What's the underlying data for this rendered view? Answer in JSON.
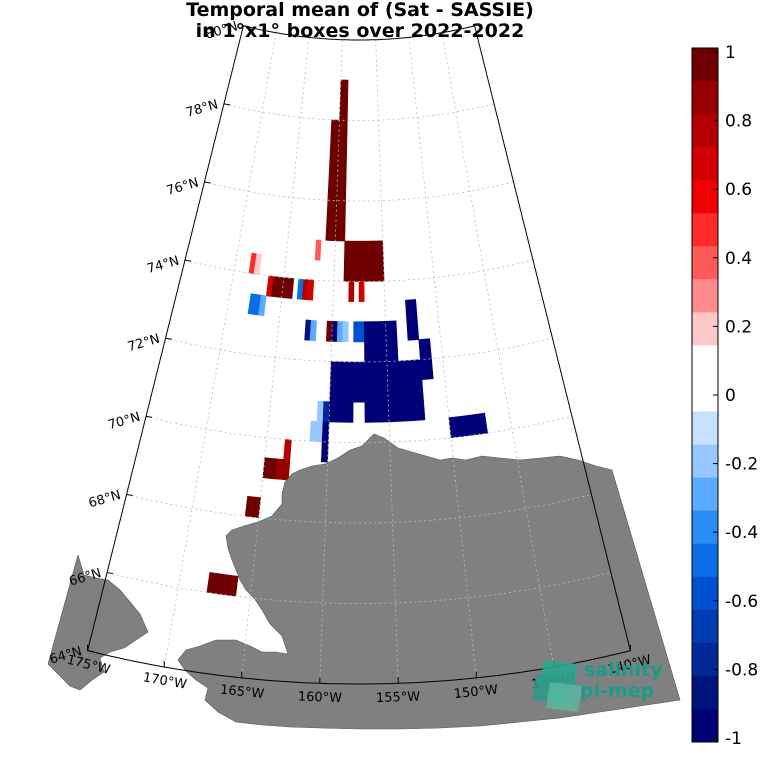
{
  "title_line1": "Temporal mean of (Sat - SASSIE)",
  "title_line2": "in 1°x1° boxes over 2022-2022",
  "chart_data": {
    "type": "heatmap",
    "projection": "polar",
    "lat_range": [
      64,
      80
    ],
    "lon_range": [
      -175,
      -140
    ],
    "lat_ticks": [
      "64°N",
      "66°N",
      "68°N",
      "70°N",
      "72°N",
      "74°N",
      "76°N",
      "78°N",
      "80°N"
    ],
    "lon_ticks": [
      "175°W",
      "170°W",
      "165°W",
      "160°W",
      "155°W",
      "150°W",
      "145°W",
      "140°W"
    ],
    "land_color": "#808080",
    "grid": true,
    "colorbar": {
      "range": [
        -1,
        1
      ],
      "tick_labels": [
        "1",
        "0.8",
        "0.6",
        "0.4",
        "0.2",
        "0",
        "-0.2",
        "-0.4",
        "-0.6",
        "-0.8",
        "-1"
      ],
      "colors_top_to_bottom": [
        "#6e0000",
        "#960000",
        "#b40000",
        "#d20000",
        "#f00000",
        "#ff2a2a",
        "#ff5a5a",
        "#ff8c8c",
        "#ffc8c8",
        "#ffffff",
        "#ffffff",
        "#c8e0ff",
        "#96c8ff",
        "#5aaaff",
        "#2a8cf5",
        "#0a6ee6",
        "#0050d2",
        "#003cb4",
        "#002896",
        "#00147d",
        "#000078"
      ]
    },
    "cells": [
      {
        "lon": -159.5,
        "lat": 78.5,
        "value": 0.95
      },
      {
        "lon": -160.5,
        "lat": 77.5,
        "value": 0.95
      },
      {
        "lon": -159.5,
        "lat": 77.5,
        "value": 0.95
      },
      {
        "lon": -160.5,
        "lat": 76.5,
        "value": 0.95
      },
      {
        "lon": -159.5,
        "lat": 76.5,
        "value": 0.95
      },
      {
        "lon": -160.5,
        "lat": 75.5,
        "value": 0.95
      },
      {
        "lon": -159.5,
        "lat": 75.5,
        "value": 0.95
      },
      {
        "lon": -161.75,
        "lat": 74.75,
        "value": 0.35
      },
      {
        "lon": -158.5,
        "lat": 74.5,
        "value": 0.95
      },
      {
        "lon": -157.5,
        "lat": 74.5,
        "value": 0.95
      },
      {
        "lon": -156.5,
        "lat": 74.5,
        "value": 0.95
      },
      {
        "lon": -155.5,
        "lat": 74.5,
        "value": 0.95
      },
      {
        "lon": -168.25,
        "lat": 74.25,
        "value": 0.45
      },
      {
        "lon": -167.75,
        "lat": 74.25,
        "value": 0.2
      },
      {
        "lon": -166.25,
        "lat": 73.75,
        "value": 0.7
      },
      {
        "lon": -165.5,
        "lat": 73.75,
        "value": 0.95
      },
      {
        "lon": -164.5,
        "lat": 73.75,
        "value": 0.95
      },
      {
        "lon": -163.25,
        "lat": 73.75,
        "value": -0.45
      },
      {
        "lon": -162.75,
        "lat": 73.75,
        "value": 0.8
      },
      {
        "lon": -162.25,
        "lat": 73.75,
        "value": 0.7
      },
      {
        "lon": -158.25,
        "lat": 73.75,
        "value": 0.8
      },
      {
        "lon": -157.25,
        "lat": 73.75,
        "value": 0.65
      },
      {
        "lon": -167.5,
        "lat": 73.25,
        "value": -0.45
      },
      {
        "lon": -166.75,
        "lat": 73.25,
        "value": -0.3
      },
      {
        "lon": -162.25,
        "lat": 72.75,
        "value": -0.85
      },
      {
        "lon": -161.75,
        "lat": 72.75,
        "value": -0.25
      },
      {
        "lon": -160.25,
        "lat": 72.75,
        "value": 0.95
      },
      {
        "lon": -159.75,
        "lat": 72.75,
        "value": -0.95
      },
      {
        "lon": -159.25,
        "lat": 72.75,
        "value": -0.3
      },
      {
        "lon": -158.75,
        "lat": 72.75,
        "value": -0.15
      },
      {
        "lon": -157.5,
        "lat": 72.75,
        "value": -0.55
      },
      {
        "lon": -156.5,
        "lat": 72.5,
        "value": -0.95
      },
      {
        "lon": -155.5,
        "lat": 72.5,
        "value": -0.95
      },
      {
        "lon": -154.5,
        "lat": 72.5,
        "value": -0.95
      },
      {
        "lon": -152.5,
        "lat": 73.0,
        "value": -0.95
      },
      {
        "lon": -159.5,
        "lat": 71.5,
        "value": -0.95
      },
      {
        "lon": -158.5,
        "lat": 71.5,
        "value": -0.95
      },
      {
        "lon": -157.5,
        "lat": 71.5,
        "value": -0.95
      },
      {
        "lon": -156.5,
        "lat": 71.5,
        "value": -0.95
      },
      {
        "lon": -155.5,
        "lat": 71.5,
        "value": -0.95
      },
      {
        "lon": -154.5,
        "lat": 71.5,
        "value": -0.95
      },
      {
        "lon": -153.5,
        "lat": 71.5,
        "value": -0.95
      },
      {
        "lon": -152.5,
        "lat": 71.5,
        "value": -0.95
      },
      {
        "lon": -151.5,
        "lat": 72.0,
        "value": -0.95
      },
      {
        "lon": -160.75,
        "lat": 70.75,
        "value": -0.2
      },
      {
        "lon": -160.25,
        "lat": 70.75,
        "value": -0.8
      },
      {
        "lon": -159.5,
        "lat": 70.75,
        "value": -0.95
      },
      {
        "lon": -158.5,
        "lat": 70.75,
        "value": -0.95
      },
      {
        "lon": -156.5,
        "lat": 70.75,
        "value": -0.95
      },
      {
        "lon": -155.5,
        "lat": 70.75,
        "value": -0.95
      },
      {
        "lon": -154.5,
        "lat": 70.75,
        "value": -0.95
      },
      {
        "lon": -153.5,
        "lat": 70.75,
        "value": -0.95
      },
      {
        "lon": -152.5,
        "lat": 70.75,
        "value": -0.95
      },
      {
        "lon": -161.0,
        "lat": 70.25,
        "value": -0.2
      },
      {
        "lon": -160.25,
        "lat": 70.0,
        "value": -0.95
      },
      {
        "lon": -149.5,
        "lat": 70.25,
        "value": -0.95
      },
      {
        "lon": -148.5,
        "lat": 70.25,
        "value": -0.95
      },
      {
        "lon": -147.5,
        "lat": 70.25,
        "value": -0.95
      },
      {
        "lon": -163.25,
        "lat": 69.75,
        "value": 0.8
      },
      {
        "lon": -164.5,
        "lat": 69.25,
        "value": 0.95
      },
      {
        "lon": -163.5,
        "lat": 69.25,
        "value": 0.9
      },
      {
        "lon": -165.5,
        "lat": 68.25,
        "value": 0.95
      },
      {
        "lon": -166.25,
        "lat": 67.25,
        "value": 0.25
      },
      {
        "lon": -166.5,
        "lat": 66.25,
        "value": 0.95
      },
      {
        "lon": -167.5,
        "lat": 66.25,
        "value": 0.95
      }
    ]
  },
  "logo_line1": "salinity",
  "logo_line2": "pi-mep"
}
